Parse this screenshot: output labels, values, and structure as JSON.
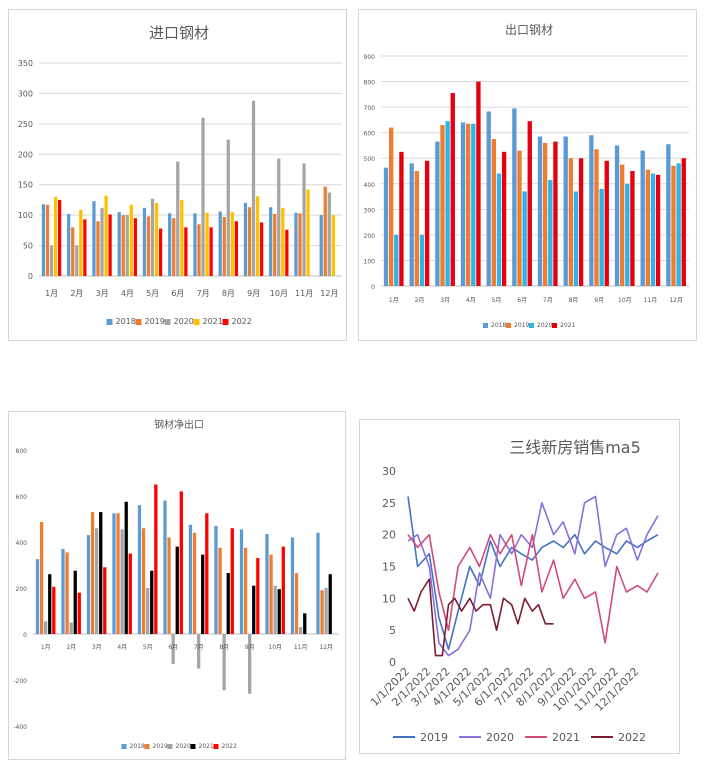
{
  "colors": {
    "2018": "#5B9BD5",
    "2019": "#ED7D31",
    "2020": "#A5A5A5",
    "2021": "#FFC000",
    "2022": "#FF0000",
    "export2020": "#2BB5E8",
    "export2021": "#E6000E",
    "net2021": "#000000",
    "net2022": "#FF0000",
    "line2019": "#4472C4",
    "line2020": "#8B6FD8",
    "line2021": "#D04B7C",
    "line2022": "#7B1D2E",
    "gridline": "#D9D9D9"
  },
  "chart_data": [
    {
      "type": "bar",
      "title": "进口钢材",
      "categories": [
        "1月",
        "2月",
        "3月",
        "4月",
        "5月",
        "6月",
        "7月",
        "8月",
        "9月",
        "10月",
        "11月",
        "12月"
      ],
      "ylim": [
        0,
        350
      ],
      "yticks": [
        "0",
        "50",
        "100",
        "150",
        "200",
        "250",
        "300",
        "350"
      ],
      "grid": true,
      "legend_position": "bottom",
      "series": [
        {
          "name": "2018",
          "values": [
            118,
            102,
            123,
            105,
            112,
            103,
            103,
            106,
            120,
            113,
            104,
            100
          ]
        },
        {
          "name": "2019",
          "values": [
            117,
            80,
            90,
            100,
            98,
            95,
            85,
            97,
            113,
            102,
            103,
            147
          ]
        },
        {
          "name": "2020",
          "values": [
            50,
            50,
            112,
            100,
            127,
            188,
            260,
            224,
            288,
            193,
            185,
            137
          ]
        },
        {
          "name": "2021",
          "values": [
            130,
            109,
            132,
            117,
            120,
            125,
            104,
            105,
            131,
            112,
            142,
            100
          ]
        },
        {
          "name": "2022",
          "values": [
            125,
            93,
            101,
            95,
            78,
            80,
            80,
            90,
            88,
            76,
            null,
            null
          ]
        }
      ]
    },
    {
      "type": "bar",
      "title": "出口钢材",
      "categories": [
        "1月",
        "2月",
        "3月",
        "4月",
        "5月",
        "6月",
        "7月",
        "8月",
        "9月",
        "10月",
        "11月",
        "12月"
      ],
      "ylim": [
        0,
        900
      ],
      "yticks": [
        "0",
        "100",
        "200",
        "300",
        "400",
        "500",
        "600",
        "700",
        "800",
        "900"
      ],
      "grid": true,
      "legend_position": "bottom",
      "series": [
        {
          "name": "2018",
          "values": [
            463,
            480,
            565,
            640,
            683,
            695,
            585,
            585,
            590,
            550,
            530,
            555
          ]
        },
        {
          "name": "2019",
          "values": [
            620,
            450,
            630,
            635,
            575,
            530,
            560,
            500,
            535,
            475,
            455,
            470
          ]
        },
        {
          "name": "2020",
          "values": [
            200,
            200,
            645,
            635,
            440,
            370,
            415,
            370,
            380,
            400,
            440,
            480
          ]
        },
        {
          "name": "2021",
          "values": [
            525,
            490,
            755,
            800,
            525,
            645,
            565,
            500,
            490,
            450,
            435,
            500
          ]
        }
      ]
    },
    {
      "type": "bar",
      "title": "钢材净出口",
      "categories": [
        "1月",
        "2月",
        "3月",
        "4月",
        "5月",
        "6月",
        "7月",
        "8月",
        "9月",
        "10月",
        "11月",
        "12月"
      ],
      "ylim": [
        -400,
        800
      ],
      "yticks": [
        "-400",
        "-200",
        "0",
        "200",
        "400",
        "600",
        "800"
      ],
      "grid": false,
      "legend_position": "bottom",
      "series": [
        {
          "name": "2018",
          "values": [
            325,
            370,
            430,
            525,
            560,
            580,
            475,
            470,
            455,
            435,
            420,
            440
          ]
        },
        {
          "name": "2019",
          "values": [
            487,
            355,
            530,
            525,
            460,
            420,
            440,
            375,
            375,
            345,
            265,
            190
          ]
        },
        {
          "name": "2020",
          "values": [
            55,
            50,
            460,
            455,
            200,
            -130,
            -150,
            -245,
            -260,
            210,
            30,
            200
          ]
        },
        {
          "name": "2021",
          "values": [
            260,
            275,
            530,
            575,
            275,
            380,
            345,
            265,
            210,
            195,
            90,
            260
          ]
        },
        {
          "name": "2022",
          "values": [
            205,
            180,
            290,
            350,
            650,
            620,
            525,
            460,
            330,
            380,
            null,
            null
          ]
        }
      ]
    },
    {
      "type": "line",
      "title": "三线新房销售ma5",
      "ylim": [
        0,
        30
      ],
      "yticks": [
        "0",
        "5",
        "10",
        "15",
        "20",
        "25",
        "30"
      ],
      "xticks": [
        "1/1/2022",
        "2/1/2022",
        "3/1/2022",
        "4/1/2022",
        "5/1/2022",
        "6/1/2022",
        "7/1/2022",
        "8/1/2022",
        "9/1/2022",
        "10/1/2022",
        "11/1/2022",
        "12/1/2022"
      ],
      "grid": false,
      "legend_position": "bottom",
      "series": [
        {
          "name": "2019",
          "x": [
            "1/1",
            "1/15",
            "2/1",
            "2/15",
            "3/1",
            "3/15",
            "4/1",
            "4/15",
            "5/1",
            "5/15",
            "6/1",
            "6/15",
            "7/1",
            "7/15",
            "8/1",
            "8/15",
            "9/1",
            "9/15",
            "10/1",
            "10/15",
            "11/1",
            "11/15",
            "12/1",
            "12/15",
            "12/31"
          ],
          "values": [
            26,
            15,
            17,
            7,
            2,
            8,
            15,
            12,
            19,
            15,
            18,
            17,
            16,
            18,
            19,
            18,
            20,
            17,
            19,
            18,
            17,
            19,
            18,
            19,
            20
          ]
        },
        {
          "name": "2020",
          "x": [
            "1/1",
            "1/15",
            "2/1",
            "2/15",
            "3/1",
            "3/15",
            "4/1",
            "4/15",
            "5/1",
            "5/15",
            "6/1",
            "6/15",
            "7/1",
            "7/15",
            "8/1",
            "8/15",
            "9/1",
            "9/15",
            "10/1",
            "10/15",
            "11/1",
            "11/15",
            "12/1",
            "12/15",
            "12/31"
          ],
          "values": [
            19,
            20,
            15,
            3,
            1,
            2,
            5,
            14,
            10,
            20,
            17,
            20,
            18,
            25,
            20,
            22,
            17,
            25,
            26,
            15,
            20,
            21,
            16,
            20,
            23
          ]
        },
        {
          "name": "2021",
          "x": [
            "1/1",
            "1/15",
            "2/1",
            "2/15",
            "3/1",
            "3/15",
            "4/1",
            "4/15",
            "5/1",
            "5/15",
            "6/1",
            "6/15",
            "7/1",
            "7/15",
            "8/1",
            "8/15",
            "9/1",
            "9/15",
            "10/1",
            "10/15",
            "11/1",
            "11/15",
            "12/1",
            "12/15",
            "12/31"
          ],
          "values": [
            20,
            18,
            20,
            11,
            5,
            15,
            18,
            15,
            20,
            17,
            20,
            12,
            20,
            11,
            16,
            10,
            13,
            10,
            11,
            3,
            15,
            11,
            12,
            11,
            14
          ]
        },
        {
          "name": "2022",
          "x": [
            "1/1",
            "1/10",
            "1/20",
            "2/1",
            "2/10",
            "2/20",
            "3/1",
            "3/10",
            "3/20",
            "4/1",
            "4/10",
            "4/20",
            "5/1",
            "5/10",
            "5/20",
            "6/1",
            "6/10",
            "6/20",
            "7/1",
            "7/10",
            "7/20",
            "8/1"
          ],
          "values": [
            10,
            8,
            11,
            13,
            1,
            1,
            9,
            10,
            8,
            10,
            8,
            9,
            9,
            5,
            10,
            9,
            6,
            10,
            8,
            9,
            6,
            6
          ]
        }
      ]
    }
  ]
}
